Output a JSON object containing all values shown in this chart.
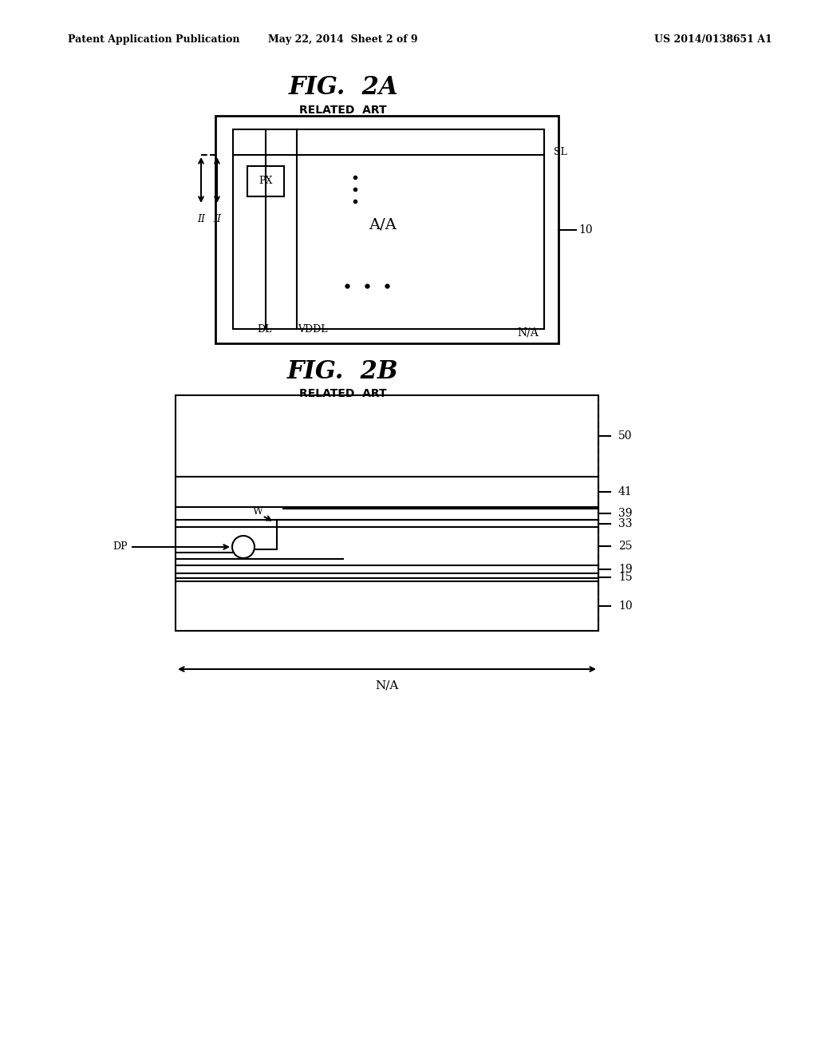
{
  "bg_color": "#ffffff",
  "text_color": "#000000",
  "header_left": "Patent Application Publication",
  "header_center": "May 22, 2014  Sheet 2 of 9",
  "header_right": "US 2014/0138651 A1",
  "fig2a_title": "FIG.  2A",
  "fig2a_subtitle": "RELATED  ART",
  "fig2b_title": "FIG.  2B",
  "fig2b_subtitle": "RELATED  ART",
  "line_color": "#000000",
  "line_width": 1.5
}
